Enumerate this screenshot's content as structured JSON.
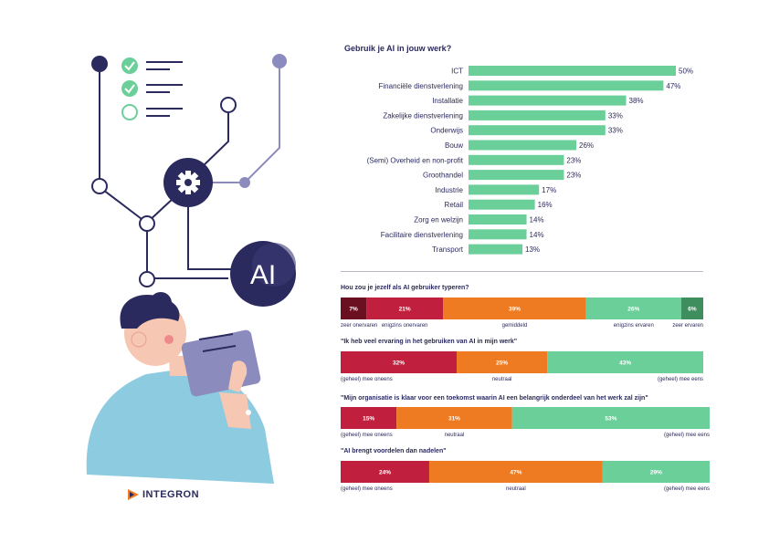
{
  "colors": {
    "navy": "#2b2a5e",
    "lavender": "#8b8bbd",
    "green": "#6bcf9a",
    "dark_red": "#6b1020",
    "red": "#c0203e",
    "orange": "#ee7a22",
    "light_green": "#6bcf9a",
    "dark_green": "#3f8f5e",
    "skin": "#f6c7b3",
    "shirt": "#8ccbe0"
  },
  "illustration": {
    "ai_label": "AI",
    "logo_text": "INTEGRON"
  },
  "chart_data": [
    {
      "type": "bar",
      "orientation": "horizontal",
      "title": "Gebruik je AI in jouw werk?",
      "categories": [
        "ICT",
        "Financiële dienstverlening",
        "Installatie",
        "Zakelijke dienstverlening",
        "Onderwijs",
        "Bouw",
        "(Semi) Overheid en non-profit",
        "Groothandel",
        "Industrie",
        "Retail",
        "Zorg en welzijn",
        "Facilitaire dienstverlening",
        "Transport"
      ],
      "values": [
        50,
        47,
        38,
        33,
        33,
        26,
        23,
        23,
        17,
        16,
        14,
        14,
        13
      ],
      "value_labels": [
        "50%",
        "47%",
        "38%",
        "33%",
        "33%",
        "26%",
        "23%",
        "23%",
        "17%",
        "16%",
        "14%",
        "14%",
        "13%"
      ],
      "xlim": [
        0,
        50
      ],
      "grid": false
    },
    {
      "type": "bar",
      "orientation": "stacked-horizontal",
      "title": "Hou zou je jezelf als AI gebruiker typeren?",
      "series": [
        {
          "name": "zeer onervaren",
          "values": [
            7
          ],
          "label": "7%",
          "color": "#6b1020"
        },
        {
          "name": "enigzins onervaren",
          "values": [
            21
          ],
          "label": "21%",
          "color": "#c0203e"
        },
        {
          "name": "gemiddeld",
          "values": [
            39
          ],
          "label": "39%",
          "color": "#ee7a22"
        },
        {
          "name": "enigzins ervaren",
          "values": [
            26
          ],
          "label": "26%",
          "color": "#6bcf9a"
        },
        {
          "name": "zeer ervaren",
          "values": [
            6
          ],
          "label": "6%",
          "color": "#3f8f5e"
        }
      ]
    },
    {
      "type": "bar",
      "orientation": "stacked-horizontal",
      "title": "\"Ik heb veel ervaring in het gebruiken van AI in mijn werk\"",
      "series": [
        {
          "name": "(geheel) mee oneens",
          "values": [
            32
          ],
          "label": "32%",
          "color": "#c0203e"
        },
        {
          "name": "neutraal",
          "values": [
            25
          ],
          "label": "25%",
          "color": "#ee7a22"
        },
        {
          "name": "(geheel) mee eens",
          "values": [
            43
          ],
          "label": "43%",
          "color": "#6bcf9a"
        }
      ]
    },
    {
      "type": "bar",
      "orientation": "stacked-horizontal",
      "title": "\"Mijn organisatie is klaar voor een toekomst waarin AI een belangrijk onderdeel van het werk zal zijn\"",
      "series": [
        {
          "name": "(geheel) mee oneens",
          "values": [
            15
          ],
          "label": "15%",
          "color": "#c0203e"
        },
        {
          "name": "neutraal",
          "values": [
            31
          ],
          "label": "31%",
          "color": "#ee7a22"
        },
        {
          "name": "(geheel) mee eens",
          "values": [
            53
          ],
          "label": "53%",
          "color": "#6bcf9a"
        }
      ]
    },
    {
      "type": "bar",
      "orientation": "stacked-horizontal",
      "title": "\"AI brengt voordelen dan nadelen\"",
      "series": [
        {
          "name": "(geheel) mee oneens",
          "values": [
            24
          ],
          "label": "24%",
          "color": "#c0203e"
        },
        {
          "name": "neutraal",
          "values": [
            47
          ],
          "label": "47%",
          "color": "#ee7a22"
        },
        {
          "name": "(geheel) mee eens",
          "values": [
            29
          ],
          "label": "29%",
          "color": "#6bcf9a"
        }
      ]
    }
  ]
}
